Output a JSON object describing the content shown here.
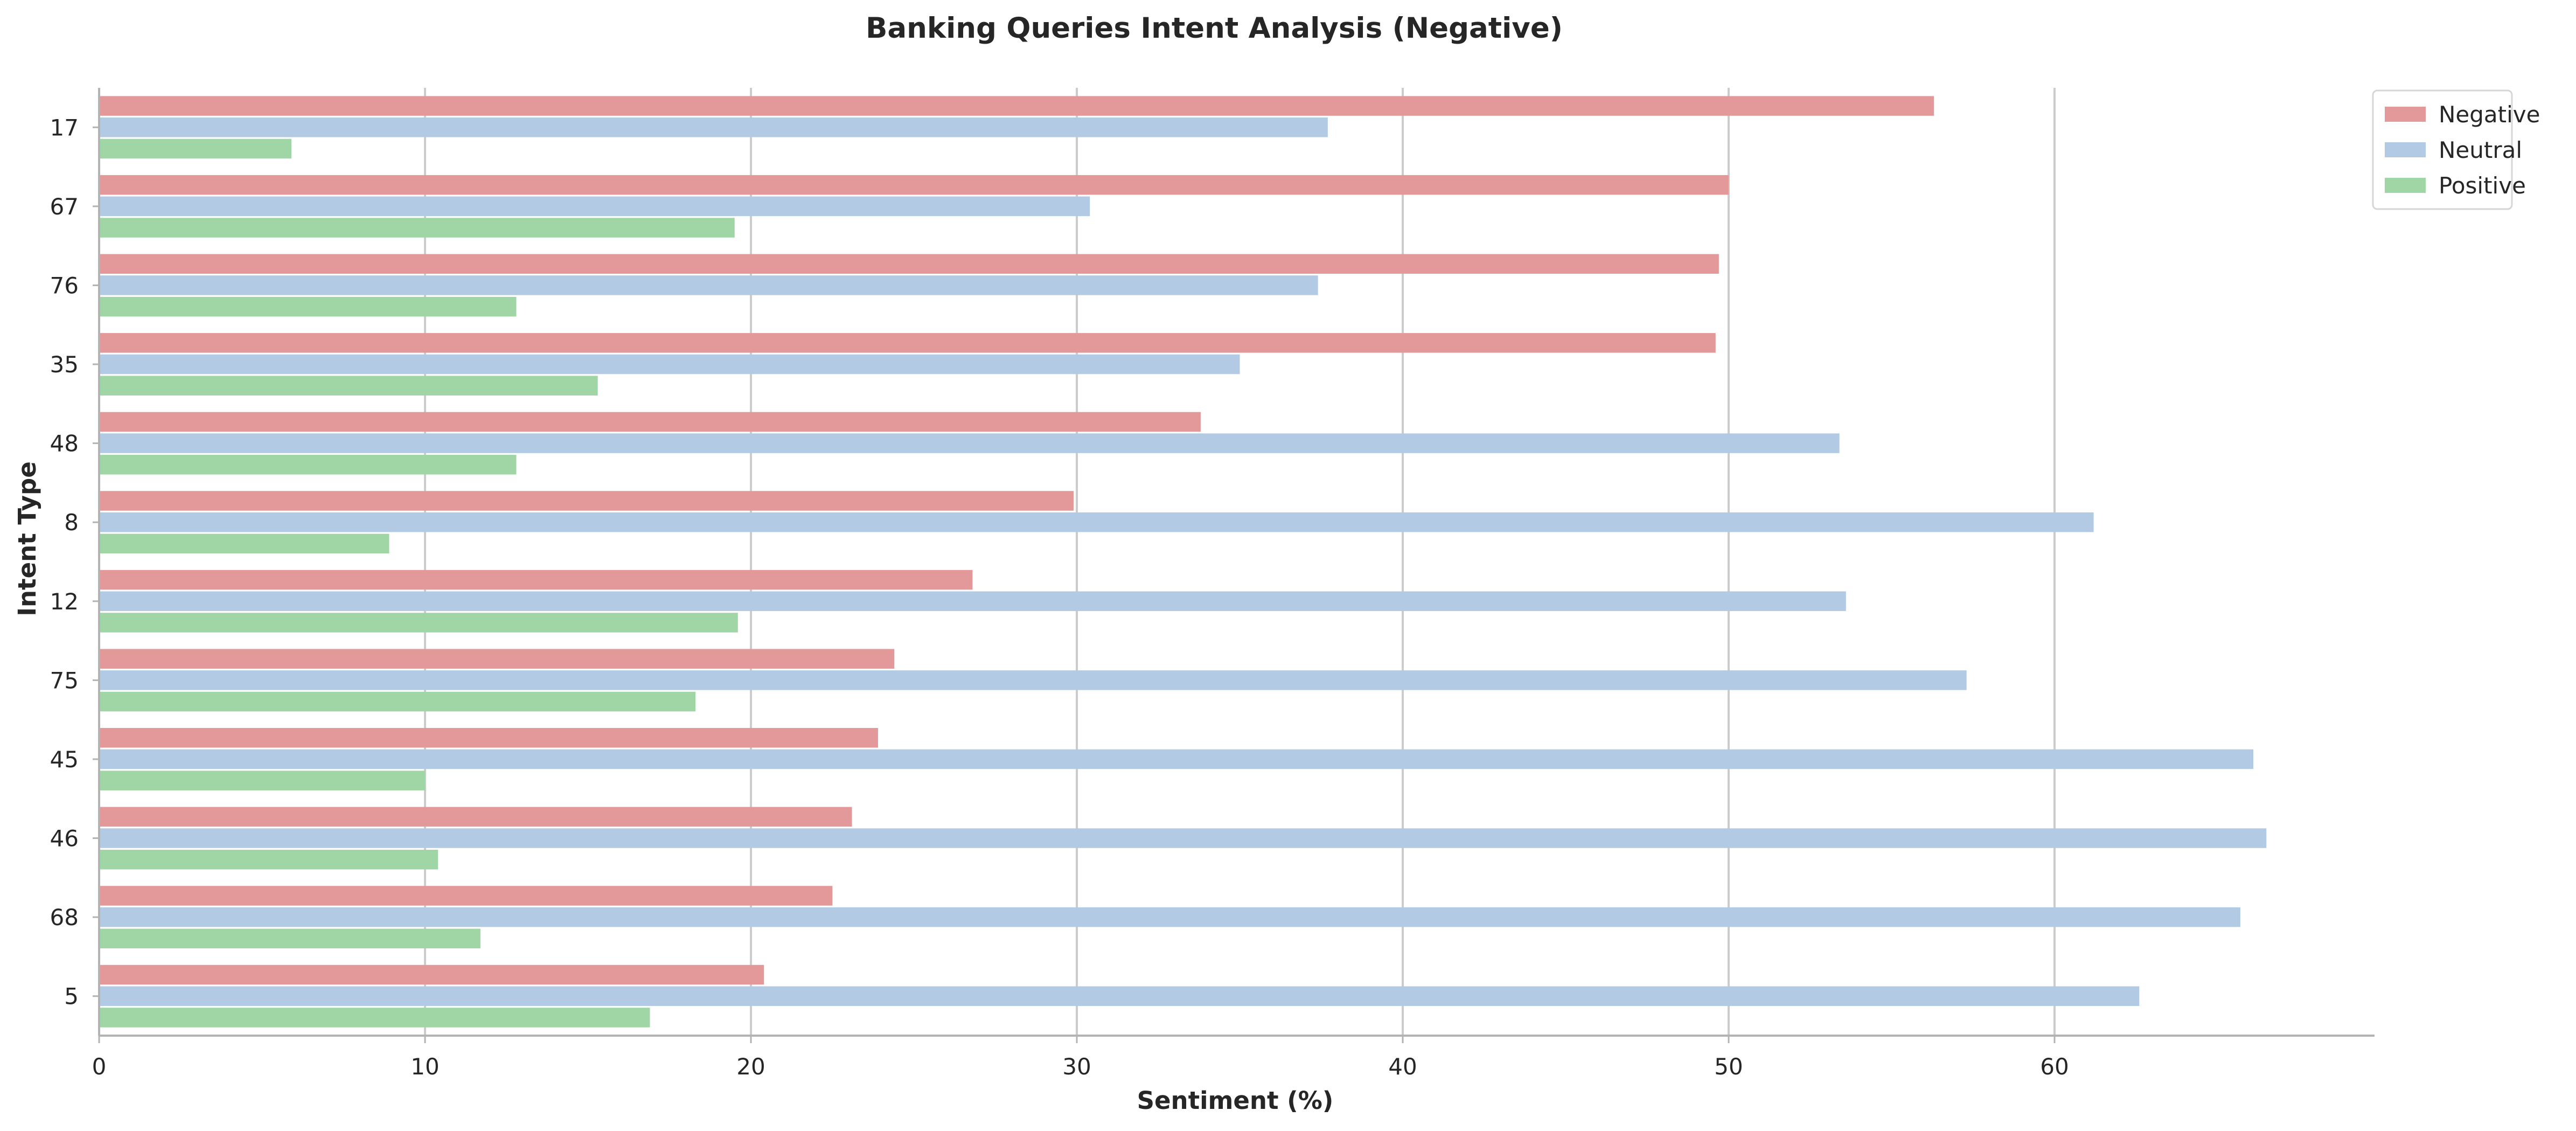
{
  "chart_data": {
    "type": "bar",
    "orientation": "horizontal",
    "title": "Banking Queries Intent Analysis (Negative)",
    "xlabel": "Sentiment (%)",
    "ylabel": "Intent Type",
    "xlim": [
      0,
      70
    ],
    "xticks": [
      0,
      10,
      20,
      30,
      40,
      50,
      60
    ],
    "grid": "vertical",
    "legend_position": "top-right",
    "categories": [
      "17",
      "67",
      "76",
      "35",
      "48",
      "8",
      "12",
      "75",
      "45",
      "46",
      "68",
      "5"
    ],
    "series": [
      {
        "name": "Negative",
        "color": "#e39999",
        "values": [
          56.3,
          50.0,
          49.7,
          49.6,
          33.8,
          29.9,
          26.8,
          24.4,
          23.9,
          23.1,
          22.5,
          20.4
        ]
      },
      {
        "name": "Neutral",
        "color": "#b2cae3",
        "values": [
          37.7,
          30.4,
          37.4,
          35.0,
          53.4,
          61.2,
          53.6,
          57.3,
          66.1,
          66.5,
          65.7,
          62.6
        ]
      },
      {
        "name": "Positive",
        "color": "#a0d6a6",
        "values": [
          5.9,
          19.5,
          12.8,
          15.3,
          12.8,
          8.9,
          19.6,
          18.3,
          10.0,
          10.4,
          11.7,
          16.9
        ]
      }
    ]
  }
}
